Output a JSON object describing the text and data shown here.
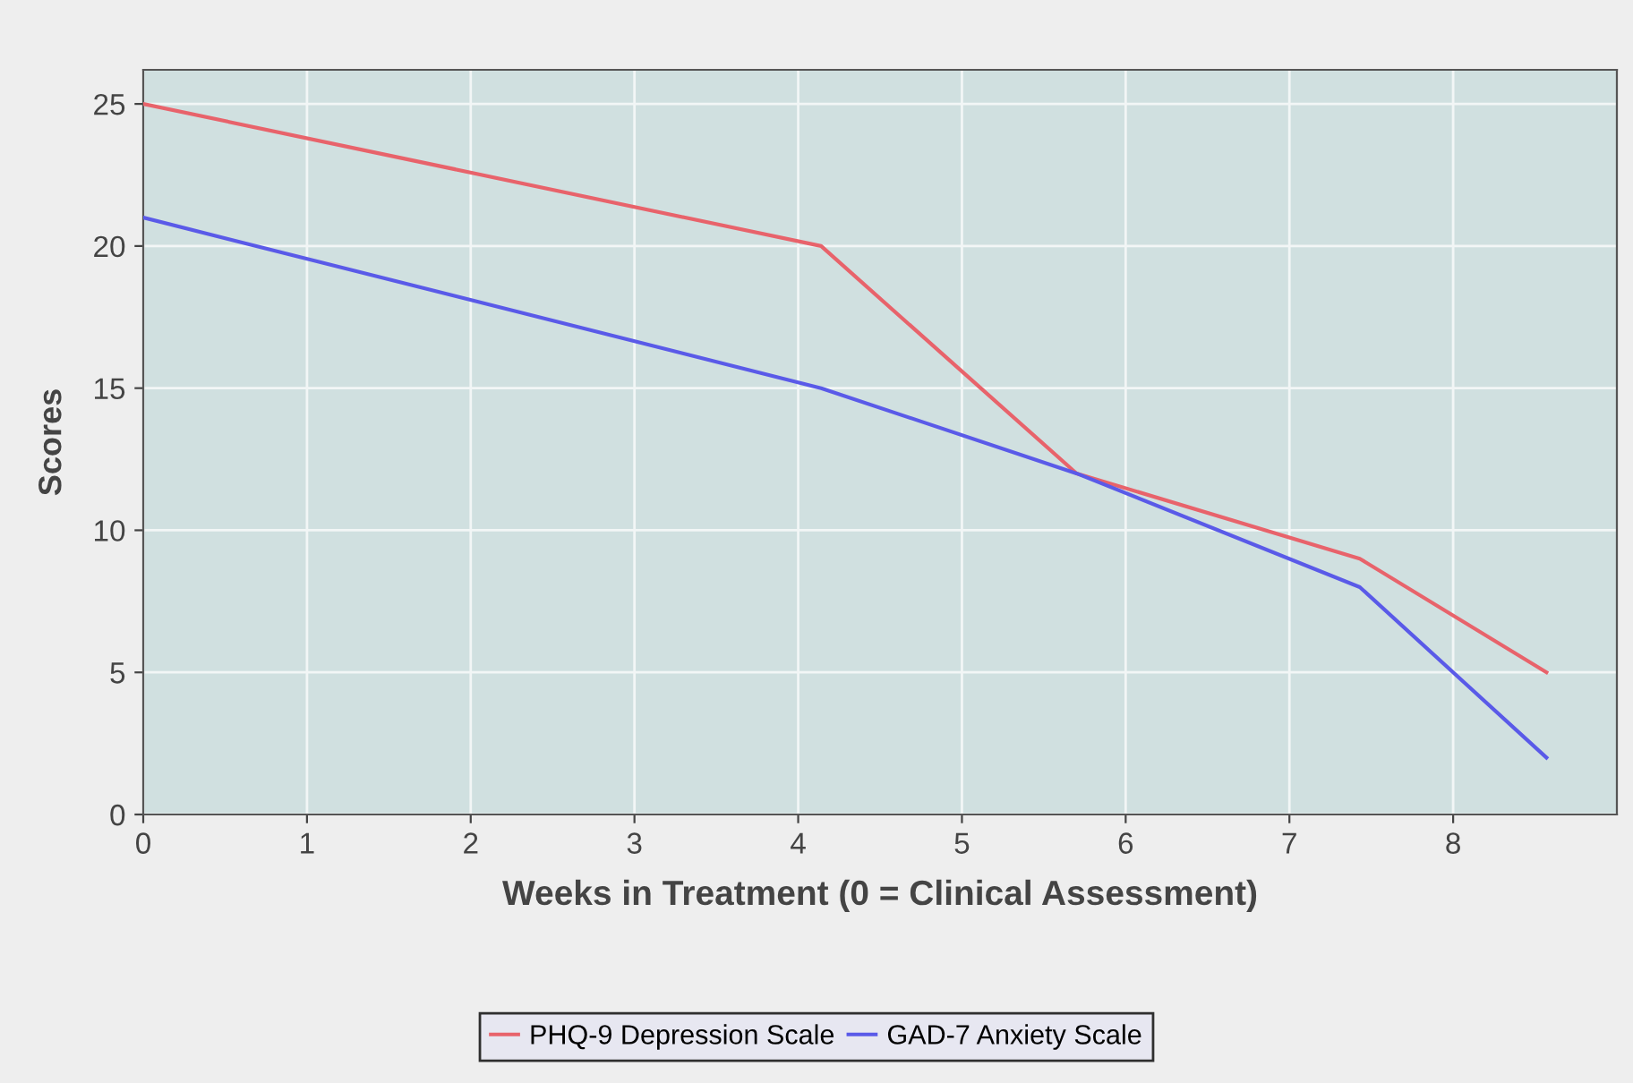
{
  "chart_data": {
    "type": "line",
    "xlabel": "Weeks in Treatment (0 = Clinical Assessment)",
    "ylabel": "Scores",
    "series": [
      {
        "name": "PHQ-9 Depression Scale",
        "color": "#e8636b",
        "x": [
          0,
          4.14,
          5.7,
          7.43,
          8.57
        ],
        "values": [
          25,
          20,
          12,
          9,
          5
        ]
      },
      {
        "name": "GAD-7 Anxiety Scale",
        "color": "#5a5ae8",
        "x": [
          0,
          4.14,
          5.7,
          7.43,
          8.57
        ],
        "values": [
          21,
          15,
          12,
          8,
          2
        ]
      }
    ],
    "xlim": [
      0,
      9
    ],
    "ylim": [
      0,
      26.2
    ],
    "xticks": [
      0,
      1,
      2,
      3,
      4,
      5,
      6,
      7,
      8
    ],
    "yticks": [
      0,
      5,
      10,
      15,
      20,
      25
    ],
    "grid": true,
    "legend": "bottom",
    "marker": "none",
    "line_style": "solid"
  }
}
